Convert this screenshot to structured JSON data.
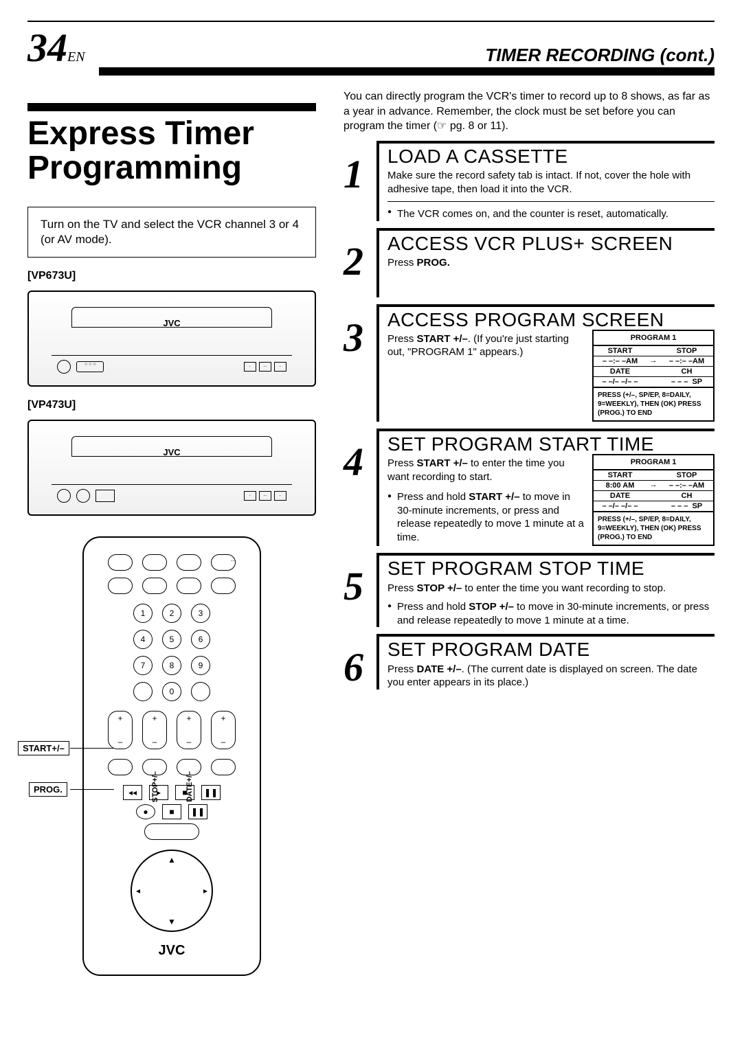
{
  "header": {
    "page_number": "34",
    "lang_suffix": "EN",
    "section": "TIMER RECORDING (cont.)"
  },
  "main_heading": "Express Timer Programming",
  "left": {
    "note": "Turn on the TV and select the VCR channel 3 or 4 (or AV mode).",
    "model_a": "[VP673U]",
    "model_b": "[VP473U]",
    "vcr_brand": "JVC",
    "remote": {
      "label_start": "START+/–",
      "label_prog": "PROG.",
      "label_stop": "STOP+/–",
      "label_date": "DATE+/–",
      "brand": "JVC",
      "numpad": [
        "1",
        "2",
        "3",
        "4",
        "5",
        "6",
        "7",
        "8",
        "9",
        "0"
      ],
      "plus": "+",
      "minus": "–",
      "tri_up": "▲",
      "tri_down": "▼",
      "rew": "◂◂",
      "play": "▸",
      "stop_sym": "■",
      "pause": "❚❚",
      "ff_l": "◂",
      "ff_r": "▸"
    }
  },
  "intro": "You can directly program the VCR's timer to record up to 8 shows, as far as a year in advance. Remember, the clock must be set before you can program the timer (☞ pg. 8 or 11).",
  "steps": [
    {
      "num": "1",
      "title": "LOAD A CASSETTE",
      "body": "Make sure the record safety tab is intact. If not, cover the hole with adhesive tape, then load it into the VCR.",
      "bullet": "The VCR comes on, and the counter is reset, automatically."
    },
    {
      "num": "2",
      "title": "ACCESS VCR PLUS+ SCREEN",
      "body_html": "Press <b>PROG.</b>"
    },
    {
      "num": "3",
      "title": "ACCESS PROGRAM SCREEN",
      "body_html": "Press <b>START +/–</b>. (If you're just starting out, \"PROGRAM 1\" appears.)",
      "osd": {
        "title": "PROGRAM 1",
        "start_label": "START",
        "stop_label": "STOP",
        "start_val": "– –:– –AM",
        "stop_val": "– –:– –AM",
        "arrow": "→",
        "date_label": "DATE",
        "ch_label": "CH",
        "date_val": "– –/– –/– –",
        "ch_val": "– – –",
        "sp": "SP",
        "msg": "PRESS (+/–, SP/EP, 8=DAILY, 9=WEEKLY), THEN (OK) PRESS (PROG.) TO END"
      }
    },
    {
      "num": "4",
      "title": "SET PROGRAM START TIME",
      "body_html": "Press <b>START +/–</b> to enter the time you want recording to start.",
      "bullet_html": "Press and hold <b>START +/–</b> to move in 30-minute increments, or press and release repeatedly to move 1 minute at a time.",
      "osd": {
        "title": "PROGRAM 1",
        "start_label": "START",
        "stop_label": "STOP",
        "start_val": "8:00 AM",
        "stop_val": "– –:– –AM",
        "arrow": "→",
        "date_label": "DATE",
        "ch_label": "CH",
        "date_val": "– –/– –/– –",
        "ch_val": "– – –",
        "sp": "SP",
        "msg": "PRESS (+/–, SP/EP, 8=DAILY, 9=WEEKLY), THEN (OK) PRESS (PROG.) TO END"
      }
    },
    {
      "num": "5",
      "title": "SET PROGRAM STOP TIME",
      "body_html": "Press <b>STOP +/–</b> to enter the time you want recording to stop.",
      "bullet_html": "Press and hold <b>STOP +/–</b> to move in 30-minute increments, or press and release repeatedly to move 1 minute at a time."
    },
    {
      "num": "6",
      "title": "SET PROGRAM DATE",
      "body_html": "Press <b>DATE +/–</b>. (The current date is displayed on screen. The date you enter appears in its place.)"
    }
  ]
}
